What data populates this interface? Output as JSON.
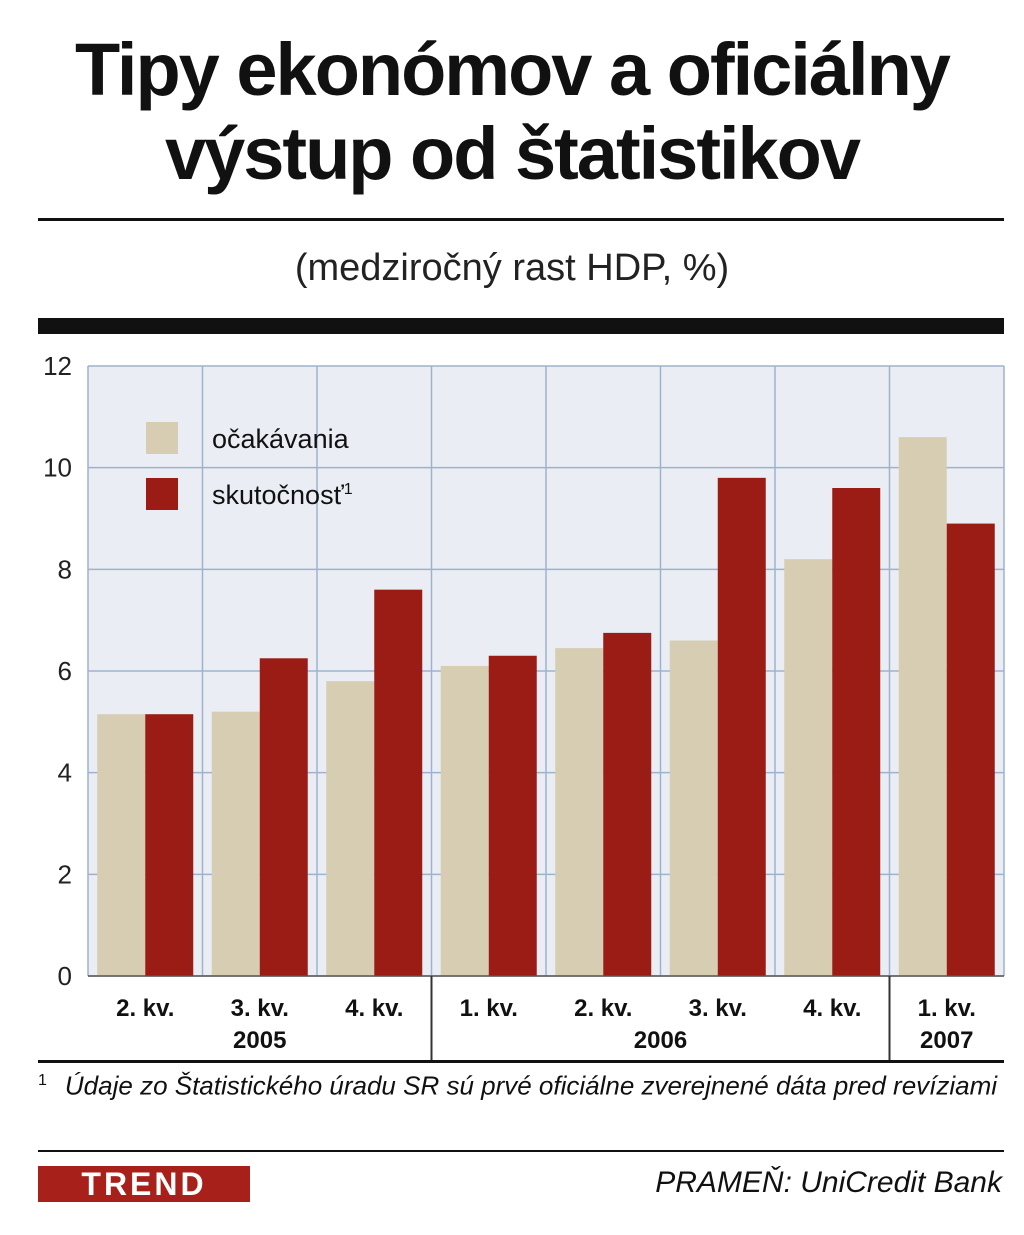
{
  "header": {
    "title_line1": "Tipy ekonómov a oficiálny",
    "title_line2": "výstup od štatistikov",
    "subtitle": "(medziročný rast HDP, %)"
  },
  "chart_data": {
    "type": "bar",
    "categories": [
      "2. kv.",
      "3. kv.",
      "4. kv.",
      "1. kv.",
      "2. kv.",
      "3. kv.",
      "4. kv.",
      "1. kv."
    ],
    "year_groups": [
      {
        "label": "2005",
        "from": 0,
        "to": 2
      },
      {
        "label": "2006",
        "from": 3,
        "to": 6
      },
      {
        "label": "2007",
        "from": 7,
        "to": 7
      }
    ],
    "series": [
      {
        "name": "očakávania",
        "color": "#d6cdb3",
        "values": [
          5.15,
          5.2,
          5.8,
          6.1,
          6.45,
          6.6,
          8.2,
          10.6
        ]
      },
      {
        "name": "skutočnosť",
        "name_sup": "1",
        "color": "#9b1c14",
        "values": [
          5.15,
          6.25,
          7.6,
          6.3,
          6.75,
          9.8,
          9.6,
          8.9
        ]
      }
    ],
    "ylim": [
      0,
      12
    ],
    "yticks": [
      "0",
      "2",
      "4",
      "6",
      "8",
      "10",
      "12"
    ],
    "grid": true,
    "legend_position": "top-left"
  },
  "footer": {
    "footnote_mark": "1",
    "footnote_text": "Údaje zo Štatistického úradu SR sú prvé oficiálne zverejnené dáta pred revíziami",
    "logo": "TREND",
    "source": "PRAMEŇ: UniCredit Bank"
  }
}
